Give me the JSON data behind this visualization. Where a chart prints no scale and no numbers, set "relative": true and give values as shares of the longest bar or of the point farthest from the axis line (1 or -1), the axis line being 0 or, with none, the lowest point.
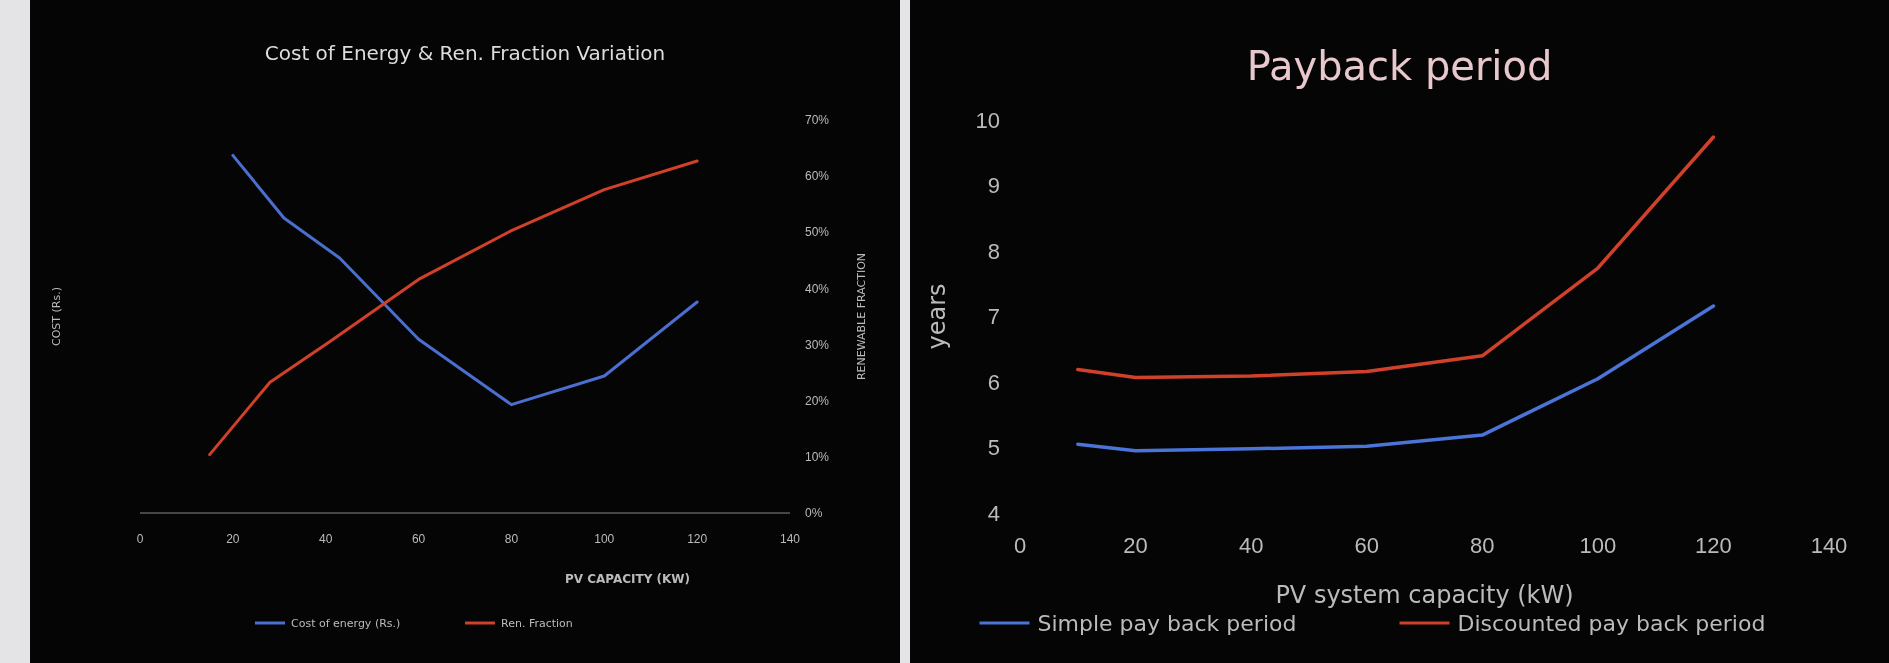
{
  "chart_data": [
    {
      "type": "line",
      "title": "Cost of Energy  & Ren. Fraction  Variation",
      "xlabel": "PV CAPACITY (KW)",
      "ylabel": "COST (Rs.)",
      "xlim": [
        0,
        140
      ],
      "xticks": [
        0,
        20,
        40,
        60,
        80,
        100,
        120,
        140
      ],
      "relative": true,
      "legend": "bottom",
      "series": [
        {
          "name": "Cost of energy (Rs.)",
          "color": "#4a6fd0",
          "x": [
            20,
            31,
            43,
            60,
            80,
            100,
            120
          ],
          "values": [
            1,
            0.825,
            0.713,
            0.486,
            0.303,
            0.383,
            0.59
          ]
        }
      ]
    },
    {
      "type": "line",
      "ylabel": "RENEWABLE FRACTION",
      "xlim": [
        0,
        140
      ],
      "tick_labels": "y",
      "ylim": [
        0,
        70
      ],
      "yticks": [
        {
          "value": 0,
          "label": "0%"
        },
        {
          "value": 10,
          "label": "10%"
        },
        {
          "value": 20,
          "label": "20%"
        },
        {
          "value": 30,
          "label": "30%"
        },
        {
          "value": 40,
          "label": "40%"
        },
        {
          "value": 50,
          "label": "50%"
        },
        {
          "value": 60,
          "label": "60%"
        },
        {
          "value": 70,
          "label": "70%"
        }
      ],
      "legend": "bottom",
      "series": [
        {
          "name": "Ren. Fraction",
          "color": "#d0402a",
          "x": [
            15,
            28,
            41,
            60,
            80,
            100,
            120
          ],
          "values": [
            10.4,
            23.3,
            30.6,
            41.6,
            50.3,
            57.6,
            62.7
          ]
        }
      ]
    },
    {
      "type": "line",
      "title": "Payback period",
      "xlabel": "PV system capacity (kW)",
      "ylabel": "years",
      "xlim": [
        0,
        140
      ],
      "xticks": [
        0,
        20,
        40,
        60,
        80,
        100,
        120,
        140
      ],
      "ylim": [
        4,
        10
      ],
      "yticks": [
        4,
        5,
        6,
        7,
        8,
        9,
        10
      ],
      "legend": "bottom",
      "series": [
        {
          "name": "Simple pay back period",
          "color": "#4a74d8",
          "x": [
            10,
            20,
            40,
            60,
            80,
            100,
            120
          ],
          "values": [
            5.05,
            4.95,
            4.98,
            5.02,
            5.19,
            6.05,
            7.16
          ]
        },
        {
          "name": "Discounted pay back period",
          "color": "#d0402a",
          "x": [
            10,
            20,
            40,
            60,
            80,
            100,
            120
          ],
          "values": [
            6.19,
            6.07,
            6.09,
            6.16,
            6.4,
            7.74,
            9.74
          ]
        }
      ]
    }
  ]
}
